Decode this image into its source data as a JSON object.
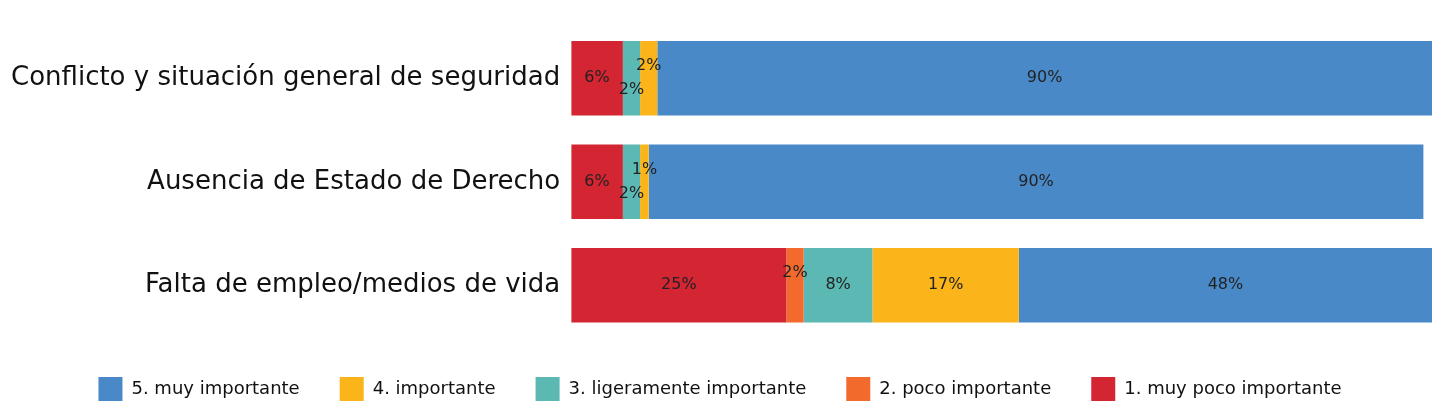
{
  "chart_data": {
    "type": "bar",
    "orientation": "horizontal",
    "stacked": true,
    "categories": [
      "Conflicto y situación general de seguridad",
      "Ausencia de Estado de Derecho",
      "Falta de empleo/medios de vida"
    ],
    "xlim": [
      0,
      100
    ],
    "tick_labels": "y",
    "legend": "bottom",
    "series": [
      {
        "name": "1. muy poco importante",
        "color": "#d42532",
        "values": [
          6,
          6,
          25
        ],
        "value_labels": [
          "6%",
          "6%",
          "25%"
        ]
      },
      {
        "name": "2. poco importante",
        "color": "#f26a2c",
        "values": [
          null,
          null,
          2
        ],
        "value_labels": [
          null,
          null,
          "2%"
        ]
      },
      {
        "name": "3. ligeramente importante",
        "color": "#5bb8b2",
        "values": [
          2,
          2,
          8
        ],
        "value_labels": [
          "2%",
          "2%",
          "8%"
        ]
      },
      {
        "name": "4. importante",
        "color": "#fbb51b",
        "values": [
          2,
          1,
          17
        ],
        "value_labels": [
          "2%",
          "1%",
          "17%"
        ]
      },
      {
        "name": "5. muy importante",
        "color": "#4a89c8",
        "values": [
          90,
          90,
          48
        ],
        "value_labels": [
          "90%",
          "90%",
          "48%"
        ]
      }
    ]
  }
}
